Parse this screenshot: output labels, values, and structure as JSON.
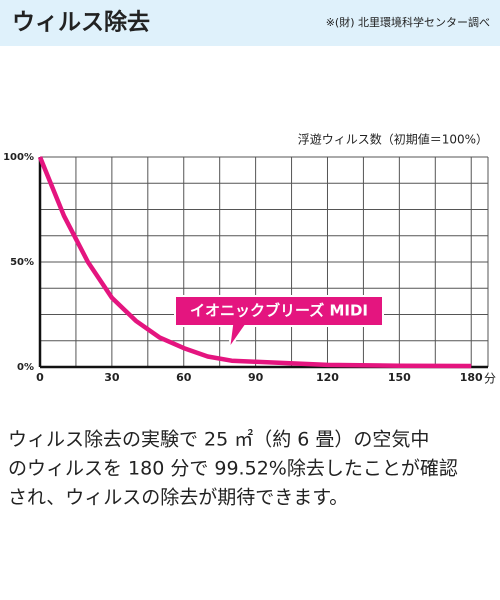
{
  "header": {
    "title": "ウィルス除去",
    "note": "※(財) 北里環境科学センター調べ"
  },
  "chart_data": {
    "type": "line",
    "y_label": "浮遊ウィルス数（初期値＝100%）",
    "x_label": "分",
    "x": [
      0,
      10,
      20,
      30,
      40,
      50,
      60,
      70,
      80,
      90,
      120,
      150,
      180
    ],
    "values": [
      100,
      72,
      50,
      33,
      22,
      14,
      9,
      5,
      3,
      2.5,
      1,
      0.6,
      0.48
    ],
    "color": "#e4157f",
    "xlim": [
      0,
      187
    ],
    "ylim": [
      0,
      100
    ],
    "xticks": [
      0,
      30,
      60,
      90,
      120,
      150,
      180
    ],
    "yticks": [
      {
        "value": 0,
        "label": "0%"
      },
      {
        "value": 50,
        "label": "50%"
      },
      {
        "value": 100,
        "label": "100%"
      }
    ],
    "xgrid": [
      15,
      30,
      45,
      60,
      75,
      90,
      105,
      120,
      135,
      150,
      165,
      180
    ],
    "ygrid": [
      12.5,
      25,
      37.5,
      50,
      62.5,
      75,
      87.5,
      100
    ],
    "annotation": "イオニックブリーズ MIDI"
  },
  "body": {
    "lines": [
      "ウィルス除去の実験で 25 ㎡（約 6 畳）の空気中",
      "のウィルスを 180 分で 99.52%除去したことが確認",
      "され、ウィルスの除去が期待できます。"
    ]
  }
}
